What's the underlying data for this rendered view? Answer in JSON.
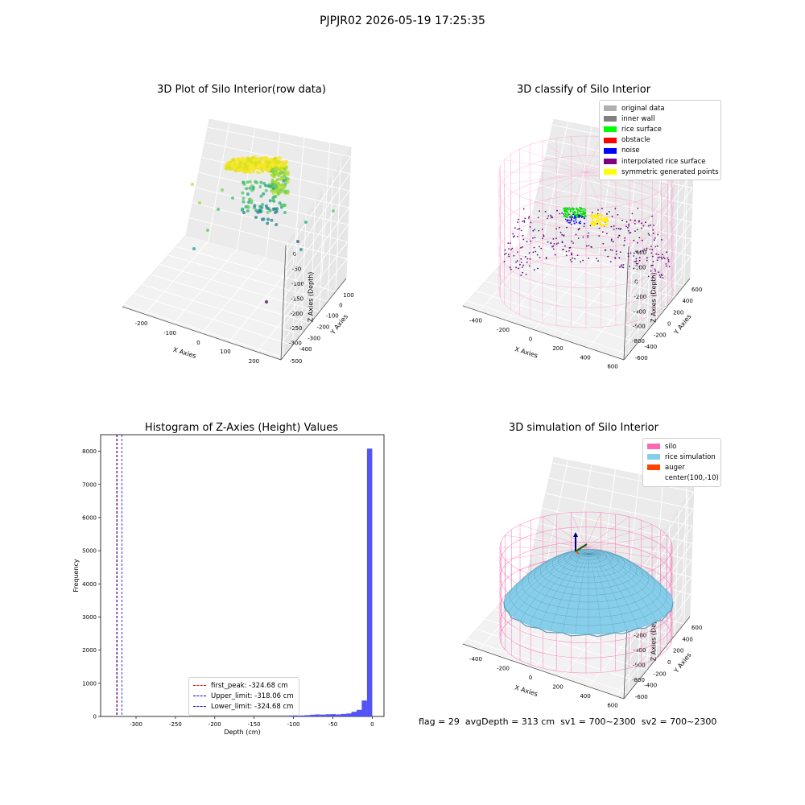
{
  "figure_title": "PJPJR02 2026-05-19 17:25:35",
  "status": {
    "flag": "flag = 29",
    "avg_depth": "avgDepth = 313 cm",
    "sv1": "sv1 = 700~2300",
    "sv2": "sv2 = 700~2300"
  },
  "chart_data": [
    {
      "type": "scatter",
      "title": "3D Plot of Silo Interior(row data)",
      "xlabel": "X Axies",
      "ylabel": "Y Axies",
      "zlabel": "Z Axies (Depth)",
      "x_ticks": [
        "-200",
        "-100",
        "0",
        "100",
        "200"
      ],
      "y_ticks": [
        "100",
        "0",
        "-100",
        "-200",
        "-300",
        "-400",
        "-500"
      ],
      "z_ticks": [
        "0",
        "-50",
        "-100",
        "-150",
        "-200",
        "-250",
        "-300"
      ],
      "xlim": [
        -250,
        250
      ],
      "ylim": [
        -500,
        150
      ],
      "zlim": [
        -330,
        20
      ],
      "colormap": "viridis"
    },
    {
      "type": "scatter",
      "title": "3D classify of Silo Interior",
      "xlabel": "X Axies",
      "ylabel": "Y Axies",
      "zlabel": "Z Axies (Depth)",
      "x_ticks": [
        "-400",
        "-200",
        "0",
        "200",
        "400",
        "600"
      ],
      "y_ticks": [
        "600",
        "400",
        "200",
        "0",
        "-200",
        "-400",
        "-600"
      ],
      "z_ticks": [
        "400",
        "200",
        "0",
        "-200",
        "-400",
        "-600",
        "-800"
      ],
      "legend": [
        {
          "label": "original data",
          "color": "#b0b0b0"
        },
        {
          "label": "inner wall",
          "color": "#808080"
        },
        {
          "label": "rice surface",
          "color": "#00ff00"
        },
        {
          "label": "obstacle",
          "color": "#ff0000"
        },
        {
          "label": "noise",
          "color": "#0000ff"
        },
        {
          "label": "interpolated rice surface",
          "color": "#800080"
        },
        {
          "label": "symmetric generated points",
          "color": "#ffff00"
        }
      ]
    },
    {
      "type": "bar",
      "title": "Histogram of Z-Axies (Height) Values",
      "xlabel": "Depth (cm)",
      "ylabel": "Frequency",
      "xlim": [
        -345,
        15
      ],
      "ylim": [
        0,
        8500
      ],
      "x_ticks": [
        -300,
        -250,
        -200,
        -150,
        -100,
        -50,
        0
      ],
      "y_ticks": [
        0,
        1000,
        2000,
        3000,
        4000,
        5000,
        6000,
        7000,
        8000
      ],
      "bin_width": 6.6,
      "bins": [
        {
          "x": -105.6,
          "count": 20
        },
        {
          "x": -99.0,
          "count": 25
        },
        {
          "x": -92.4,
          "count": 30
        },
        {
          "x": -85.8,
          "count": 40
        },
        {
          "x": -79.2,
          "count": 50
        },
        {
          "x": -72.6,
          "count": 60
        },
        {
          "x": -66.0,
          "count": 55
        },
        {
          "x": -59.4,
          "count": 65
        },
        {
          "x": -52.8,
          "count": 70
        },
        {
          "x": -46.2,
          "count": 60
        },
        {
          "x": -39.6,
          "count": 75
        },
        {
          "x": -33.0,
          "count": 90
        },
        {
          "x": -26.4,
          "count": 140
        },
        {
          "x": -19.8,
          "count": 200
        },
        {
          "x": -13.2,
          "count": 480
        },
        {
          "x": -6.6,
          "count": 8080
        }
      ],
      "vlines": [
        {
          "label": "first_peak: -324.68 cm",
          "x": -324.68,
          "color": "#ff0000"
        },
        {
          "label": "Upper_limit: -318.06 cm",
          "x": -318.06,
          "color": "#0000ff"
        },
        {
          "label": "Lower_limit: -324.68 cm",
          "x": -324.68,
          "color": "#0000ff"
        }
      ],
      "bar_color": "#4a4af5"
    },
    {
      "type": "surface",
      "title": "3D simulation of Silo Interior",
      "xlabel": "X Axies",
      "ylabel": "Y Axies",
      "zlabel": "Z Axies (Depth)",
      "x_ticks": [
        "-400",
        "-200",
        "0",
        "200",
        "400",
        "600"
      ],
      "y_ticks": [
        "600",
        "400",
        "200",
        "0",
        "-200",
        "-400",
        "-600"
      ],
      "z_ticks": [
        "400",
        "200",
        "0",
        "-200",
        "-400",
        "-600",
        "-800"
      ],
      "legend": [
        {
          "label": "silo",
          "color": "#ff69b4"
        },
        {
          "label": "rice simulation",
          "color": "#87ceeb"
        },
        {
          "label": "auger",
          "color": "#ff4500"
        },
        {
          "label": "center(100,-10)",
          "color": ""
        }
      ]
    }
  ]
}
